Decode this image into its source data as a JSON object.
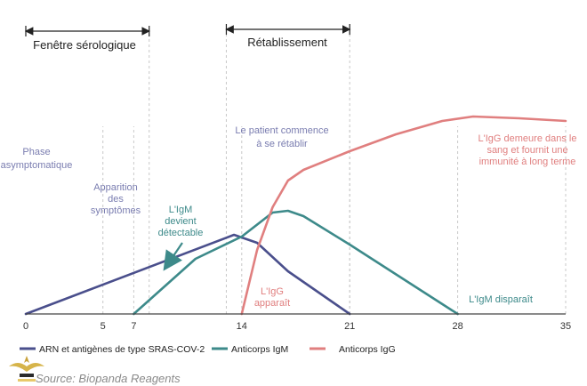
{
  "chart_data": {
    "type": "line",
    "xlim": [
      0,
      35
    ],
    "x_ticks": [
      "0",
      "5",
      "7",
      "14",
      "21",
      "28",
      "35"
    ],
    "x_tick_values": [
      0,
      5,
      7,
      14,
      21,
      28,
      35
    ],
    "series": [
      {
        "name": "ARN et antigènes de type SRAS-COV-2",
        "color": "#4a4f8c",
        "points": [
          [
            0,
            0
          ],
          [
            13.5,
            0.89
          ],
          [
            15,
            0.8
          ],
          [
            17,
            0.48
          ],
          [
            21,
            0
          ]
        ]
      },
      {
        "name": "Anticorps IgM",
        "color": "#3d8a8a",
        "points": [
          [
            7,
            0
          ],
          [
            11,
            0.62
          ],
          [
            14,
            0.87
          ],
          [
            16,
            1.14
          ],
          [
            17,
            1.16
          ],
          [
            18,
            1.1
          ],
          [
            21,
            0.78
          ],
          [
            28,
            0
          ]
        ]
      },
      {
        "name": "Anticorps IgG",
        "color": "#e07f7f",
        "points": [
          [
            14,
            0
          ],
          [
            15,
            0.72
          ],
          [
            16,
            1.2
          ],
          [
            17,
            1.5
          ],
          [
            18,
            1.62
          ],
          [
            21,
            1.83
          ],
          [
            24,
            2.02
          ],
          [
            27,
            2.17
          ],
          [
            29,
            2.22
          ],
          [
            32,
            2.2
          ],
          [
            35,
            2.17
          ]
        ]
      }
    ],
    "period_lines": [
      7,
      8,
      13,
      21
    ],
    "annotations": {
      "fenetre": "Fenêtre sérologique",
      "retablissement": "Rétablissement",
      "phase": [
        "Phase",
        "asymptomatique"
      ],
      "apparition": [
        "Apparition",
        "des",
        "symptômes"
      ],
      "patient": [
        "Le patient commence",
        "à se rétablir"
      ],
      "igm_detect": [
        "L'IgM",
        "devient",
        "détectable"
      ],
      "igg_apparait": [
        "L'IgG",
        "apparaît"
      ],
      "igg_demeure": [
        "L'IgG demeure dans le",
        "sang et fournit une",
        "immunité à long terme"
      ],
      "igm_disparait": "L'IgM disparaît"
    },
    "source": "Source: Biopanda Reagents"
  }
}
